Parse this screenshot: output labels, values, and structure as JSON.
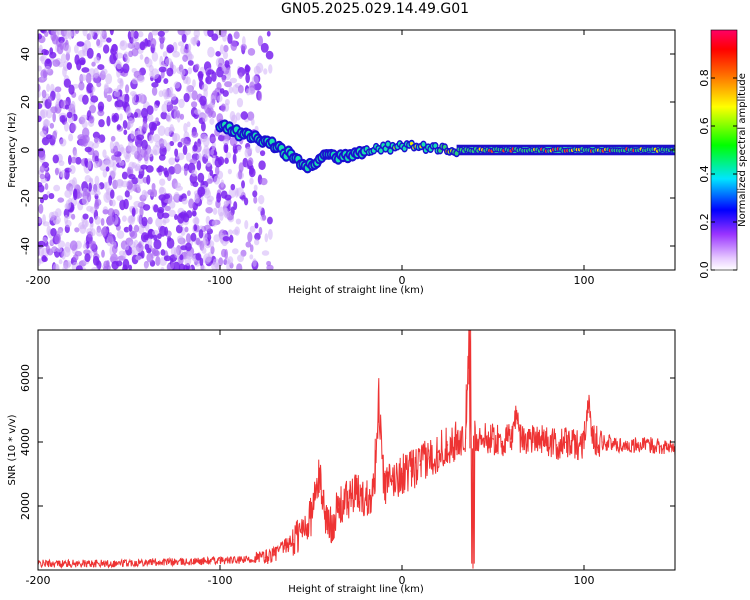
{
  "title": "GN05.2025.029.14.49.G01",
  "colors": {
    "snr_line": "#ee3333",
    "ridge": "#e8312c"
  },
  "chart_data": [
    {
      "type": "heatmap",
      "title": "",
      "xlabel": "Height of straight line (km)",
      "ylabel": "Frequency (Hz)",
      "xlim": [
        -200,
        150
      ],
      "ylim": [
        -50,
        50
      ],
      "xticks": [
        -200,
        -100,
        0,
        100
      ],
      "yticks": [
        -40,
        -20,
        0,
        20,
        40
      ],
      "colorbar": {
        "label": "Normalized spectral amplitude",
        "range": [
          0,
          1
        ],
        "ticks": [
          0.0,
          0.2,
          0.4,
          0.6,
          0.8
        ],
        "colormap": "rainbow"
      },
      "noise_region_x": [
        -200,
        -80
      ],
      "ridge": {
        "x": [
          -100,
          -90,
          -80,
          -70,
          -60,
          -55,
          -50,
          -45,
          -40,
          -35,
          -30,
          -25,
          -20,
          -15,
          -10,
          -5,
          0,
          5,
          10,
          15,
          20,
          25,
          30,
          40,
          50,
          60,
          70,
          80,
          90,
          100,
          110,
          120,
          130,
          140,
          150
        ],
        "y": [
          10,
          7,
          5,
          2,
          -3,
          -6,
          -7,
          -3,
          -2,
          -3,
          -2,
          -1,
          0,
          1,
          1,
          1,
          2,
          2,
          1,
          1,
          0,
          0,
          0,
          0,
          0,
          0,
          0,
          0,
          0,
          0,
          0,
          0,
          0,
          0,
          0
        ]
      }
    },
    {
      "type": "line",
      "title": "",
      "xlabel": "Height of straight line (km)",
      "ylabel": "SNR (10 * v/v)",
      "xlim": [
        -200,
        150
      ],
      "ylim": [
        0,
        7500
      ],
      "xticks": [
        -200,
        -100,
        0,
        100
      ],
      "yticks": [
        2000,
        4000,
        6000
      ],
      "series": [
        {
          "x": [
            -200,
            -180,
            -160,
            -140,
            -120,
            -100,
            -90,
            -80,
            -75,
            -70,
            -65,
            -60,
            -55,
            -50,
            -47,
            -45,
            -43,
            -40,
            -35,
            -30,
            -25,
            -20,
            -15,
            -13,
            -10,
            -5,
            0,
            5,
            10,
            15,
            20,
            25,
            30,
            35,
            37,
            38,
            39,
            40,
            45,
            50,
            55,
            60,
            63,
            65,
            70,
            75,
            80,
            85,
            90,
            95,
            100,
            102,
            105,
            110,
            120,
            130,
            140,
            150
          ],
          "y": [
            200,
            200,
            200,
            250,
            250,
            300,
            300,
            350,
            400,
            500,
            700,
            900,
            1200,
            1700,
            2500,
            3000,
            2000,
            1300,
            1900,
            2200,
            2400,
            2200,
            2600,
            5600,
            2600,
            2800,
            3000,
            3100,
            3300,
            3500,
            3700,
            3900,
            4000,
            4100,
            7500,
            3800,
            200,
            4200,
            4100,
            4100,
            4000,
            4100,
            5000,
            4100,
            4100,
            4200,
            4000,
            3900,
            4000,
            3900,
            4000,
            5300,
            4100,
            4000,
            3900,
            3900,
            3900,
            3800
          ]
        }
      ]
    }
  ]
}
